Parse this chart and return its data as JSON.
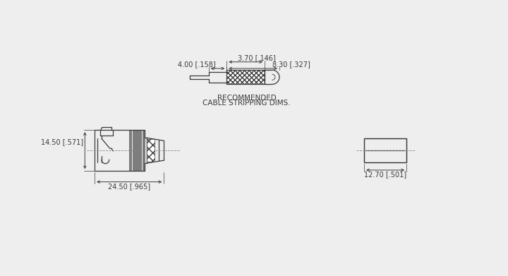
{
  "bg_color": "#eeeeee",
  "line_color": "#3a3a3a",
  "dim_color": "#3a3a3a",
  "title_line1": "RECOMMENDED",
  "title_line2": "CABLE STRIPPING DIMS.",
  "dim_top_left": "4.00 [.158]",
  "dim_top_mid": "3.70 [.146]",
  "dim_top_right": "8.30 [.327]",
  "dim_bottom_width": "24.50 [.965]",
  "dim_bottom_height": "14.50 [.571]",
  "dim_right_width": "12.70 [.501]",
  "font_size": 7.0
}
